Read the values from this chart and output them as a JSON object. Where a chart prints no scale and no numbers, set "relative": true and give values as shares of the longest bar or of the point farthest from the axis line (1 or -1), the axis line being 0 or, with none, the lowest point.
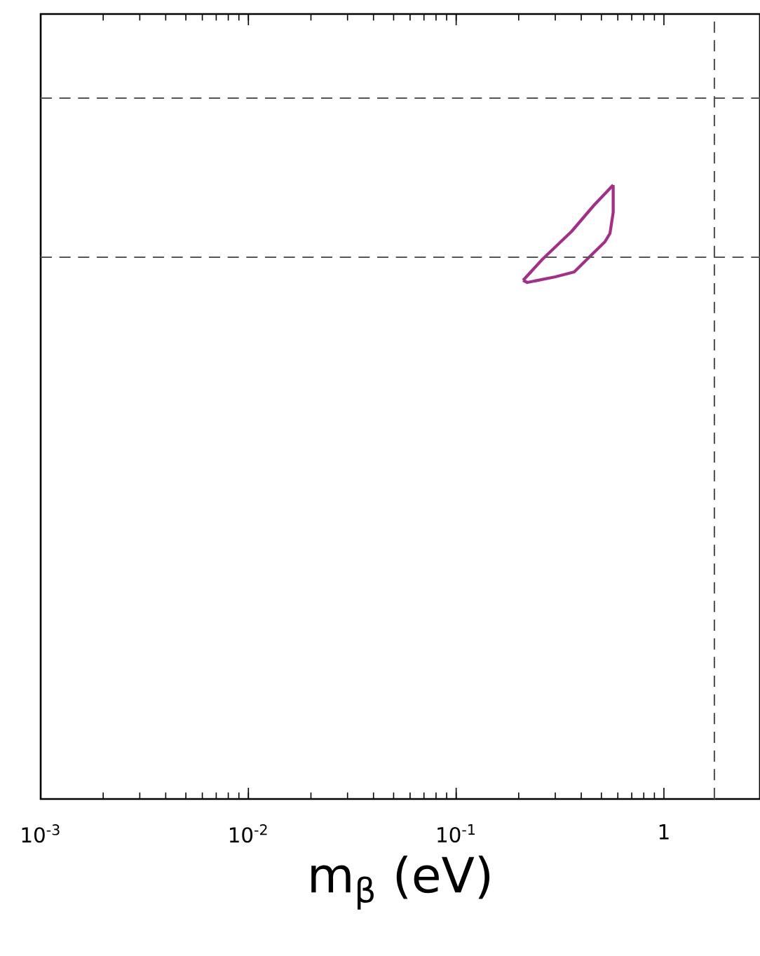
{
  "chart_data": {
    "type": "line",
    "xlabel": "m$_{β}$ (eV)",
    "log": "x",
    "relative": true,
    "xlim": [
      0.001,
      2.9
    ],
    "xticks": [
      {
        "value": 0.001,
        "label": "10$^{-3}$"
      },
      {
        "value": 0.01,
        "label": "10$^{-2}$"
      },
      {
        "value": 0.1,
        "label": "10$^{-1}$"
      },
      1
    ],
    "tick_labels": "x",
    "series": [
      {
        "color": "#a0308a",
        "line_style": "solid",
        "x": [
          0.21,
          0.26,
          0.36,
          0.46,
          0.57
        ],
        "values": [
          0.74,
          0.77,
          0.81,
          0.847,
          0.876
        ]
      },
      {
        "color": "#a0308a",
        "line_style": "solid",
        "x": [
          0.21,
          0.22,
          0.3,
          0.37,
          0.44,
          0.52,
          0.55,
          0.57,
          0.57
        ],
        "values": [
          0.74,
          0.737,
          0.745,
          0.752,
          0.774,
          0.795,
          0.807,
          0.837,
          0.876
        ]
      },
      {
        "color": "#555555",
        "line_style": "dashed",
        "x": [
          0.001,
          2.9
        ],
        "values": [
          1.0,
          1.0
        ]
      },
      {
        "color": "#555555",
        "line_style": "dashed",
        "x": [
          0.001,
          2.9
        ],
        "values": [
          0.773,
          0.773
        ]
      }
    ],
    "ref_lines": [
      {
        "axis": "x",
        "value": 1.75,
        "line_style": "dashed",
        "color": "#555555"
      }
    ]
  }
}
